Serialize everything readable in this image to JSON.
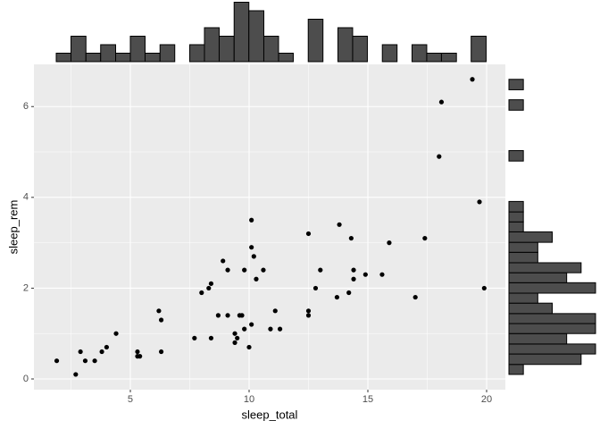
{
  "chart_data": [
    {
      "type": "scatter",
      "xlabel": "sleep_total",
      "ylabel": "sleep_rem",
      "color": "#000000",
      "grid": true,
      "xlim": [
        0.94,
        20.79
      ],
      "ylim": [
        -0.236,
        6.93
      ],
      "xticks": [
        5,
        10,
        15,
        20
      ],
      "yticks": [
        0,
        2,
        4,
        6
      ],
      "xminor": [
        2.5,
        7.5,
        12.5,
        17.5
      ],
      "yminor": [
        1,
        3,
        5
      ],
      "x": [
        1.9,
        2.7,
        2.9,
        3.1,
        3.5,
        3.8,
        4.0,
        4.4,
        5.3,
        5.3,
        5.4,
        6.2,
        6.3,
        6.3,
        7.7,
        8.0,
        8.3,
        8.4,
        8.4,
        8.7,
        8.9,
        9.1,
        9.1,
        9.4,
        9.4,
        9.5,
        9.6,
        9.7,
        9.8,
        9.8,
        10.0,
        10.1,
        10.1,
        10.1,
        10.2,
        10.3,
        10.6,
        10.9,
        11.1,
        11.3,
        12.5,
        12.5,
        12.5,
        12.8,
        13.0,
        13.7,
        13.8,
        14.2,
        14.3,
        14.4,
        14.4,
        14.9,
        15.6,
        15.9,
        17.0,
        17.4,
        18.0,
        18.1,
        19.4,
        19.7,
        19.9
      ],
      "y": [
        0.4,
        0.1,
        0.6,
        0.4,
        0.4,
        0.6,
        0.7,
        1.0,
        0.6,
        0.5,
        0.5,
        1.5,
        1.3,
        0.6,
        0.9,
        1.9,
        2.0,
        2.1,
        0.9,
        1.4,
        2.6,
        2.4,
        1.4,
        1.0,
        0.8,
        0.9,
        1.4,
        1.4,
        2.4,
        1.1,
        0.7,
        3.5,
        2.9,
        1.2,
        2.7,
        2.2,
        2.4,
        1.1,
        1.5,
        1.1,
        3.2,
        1.5,
        1.4,
        2.0,
        2.4,
        1.8,
        3.4,
        1.9,
        3.1,
        2.4,
        2.2,
        2.3,
        2.3,
        3.0,
        1.8,
        3.1,
        4.9,
        6.1,
        6.6,
        3.9,
        2.0
      ]
    },
    {
      "type": "histogram",
      "orientation": "vertical",
      "color": "#4d4d4d",
      "bins": [
        1.88,
        2.5,
        3.13,
        3.75,
        4.38,
        5.0,
        5.62,
        6.25,
        6.87,
        7.5,
        8.12,
        8.74,
        9.37,
        9.99,
        10.62,
        11.24,
        11.86,
        12.49,
        13.11,
        13.74,
        14.36,
        14.98,
        15.61,
        16.23,
        16.86,
        17.48,
        18.1,
        18.73,
        19.35,
        19.98
      ],
      "counts": [
        1,
        3,
        1,
        2,
        1,
        3,
        1,
        2,
        0,
        2,
        4,
        3,
        7,
        6,
        3,
        1,
        0,
        5,
        0,
        4,
        3,
        0,
        2,
        0,
        2,
        1,
        1,
        0,
        3
      ]
    },
    {
      "type": "histogram",
      "orientation": "horizontal",
      "color": "#4d4d4d",
      "bins": [
        0.1,
        0.32,
        0.55,
        0.77,
        1.0,
        1.22,
        1.44,
        1.67,
        1.89,
        2.12,
        2.34,
        2.56,
        2.79,
        3.01,
        3.24,
        3.46,
        3.68,
        3.91,
        4.13,
        4.36,
        4.58,
        4.8,
        5.03,
        5.25,
        5.48,
        5.7,
        5.92,
        6.15,
        6.37,
        6.6
      ],
      "counts": [
        1,
        5,
        6,
        4,
        6,
        6,
        3,
        2,
        6,
        4,
        5,
        2,
        2,
        3,
        1,
        1,
        1,
        0,
        0,
        0,
        0,
        1,
        0,
        0,
        0,
        0,
        1,
        0,
        1
      ]
    }
  ]
}
